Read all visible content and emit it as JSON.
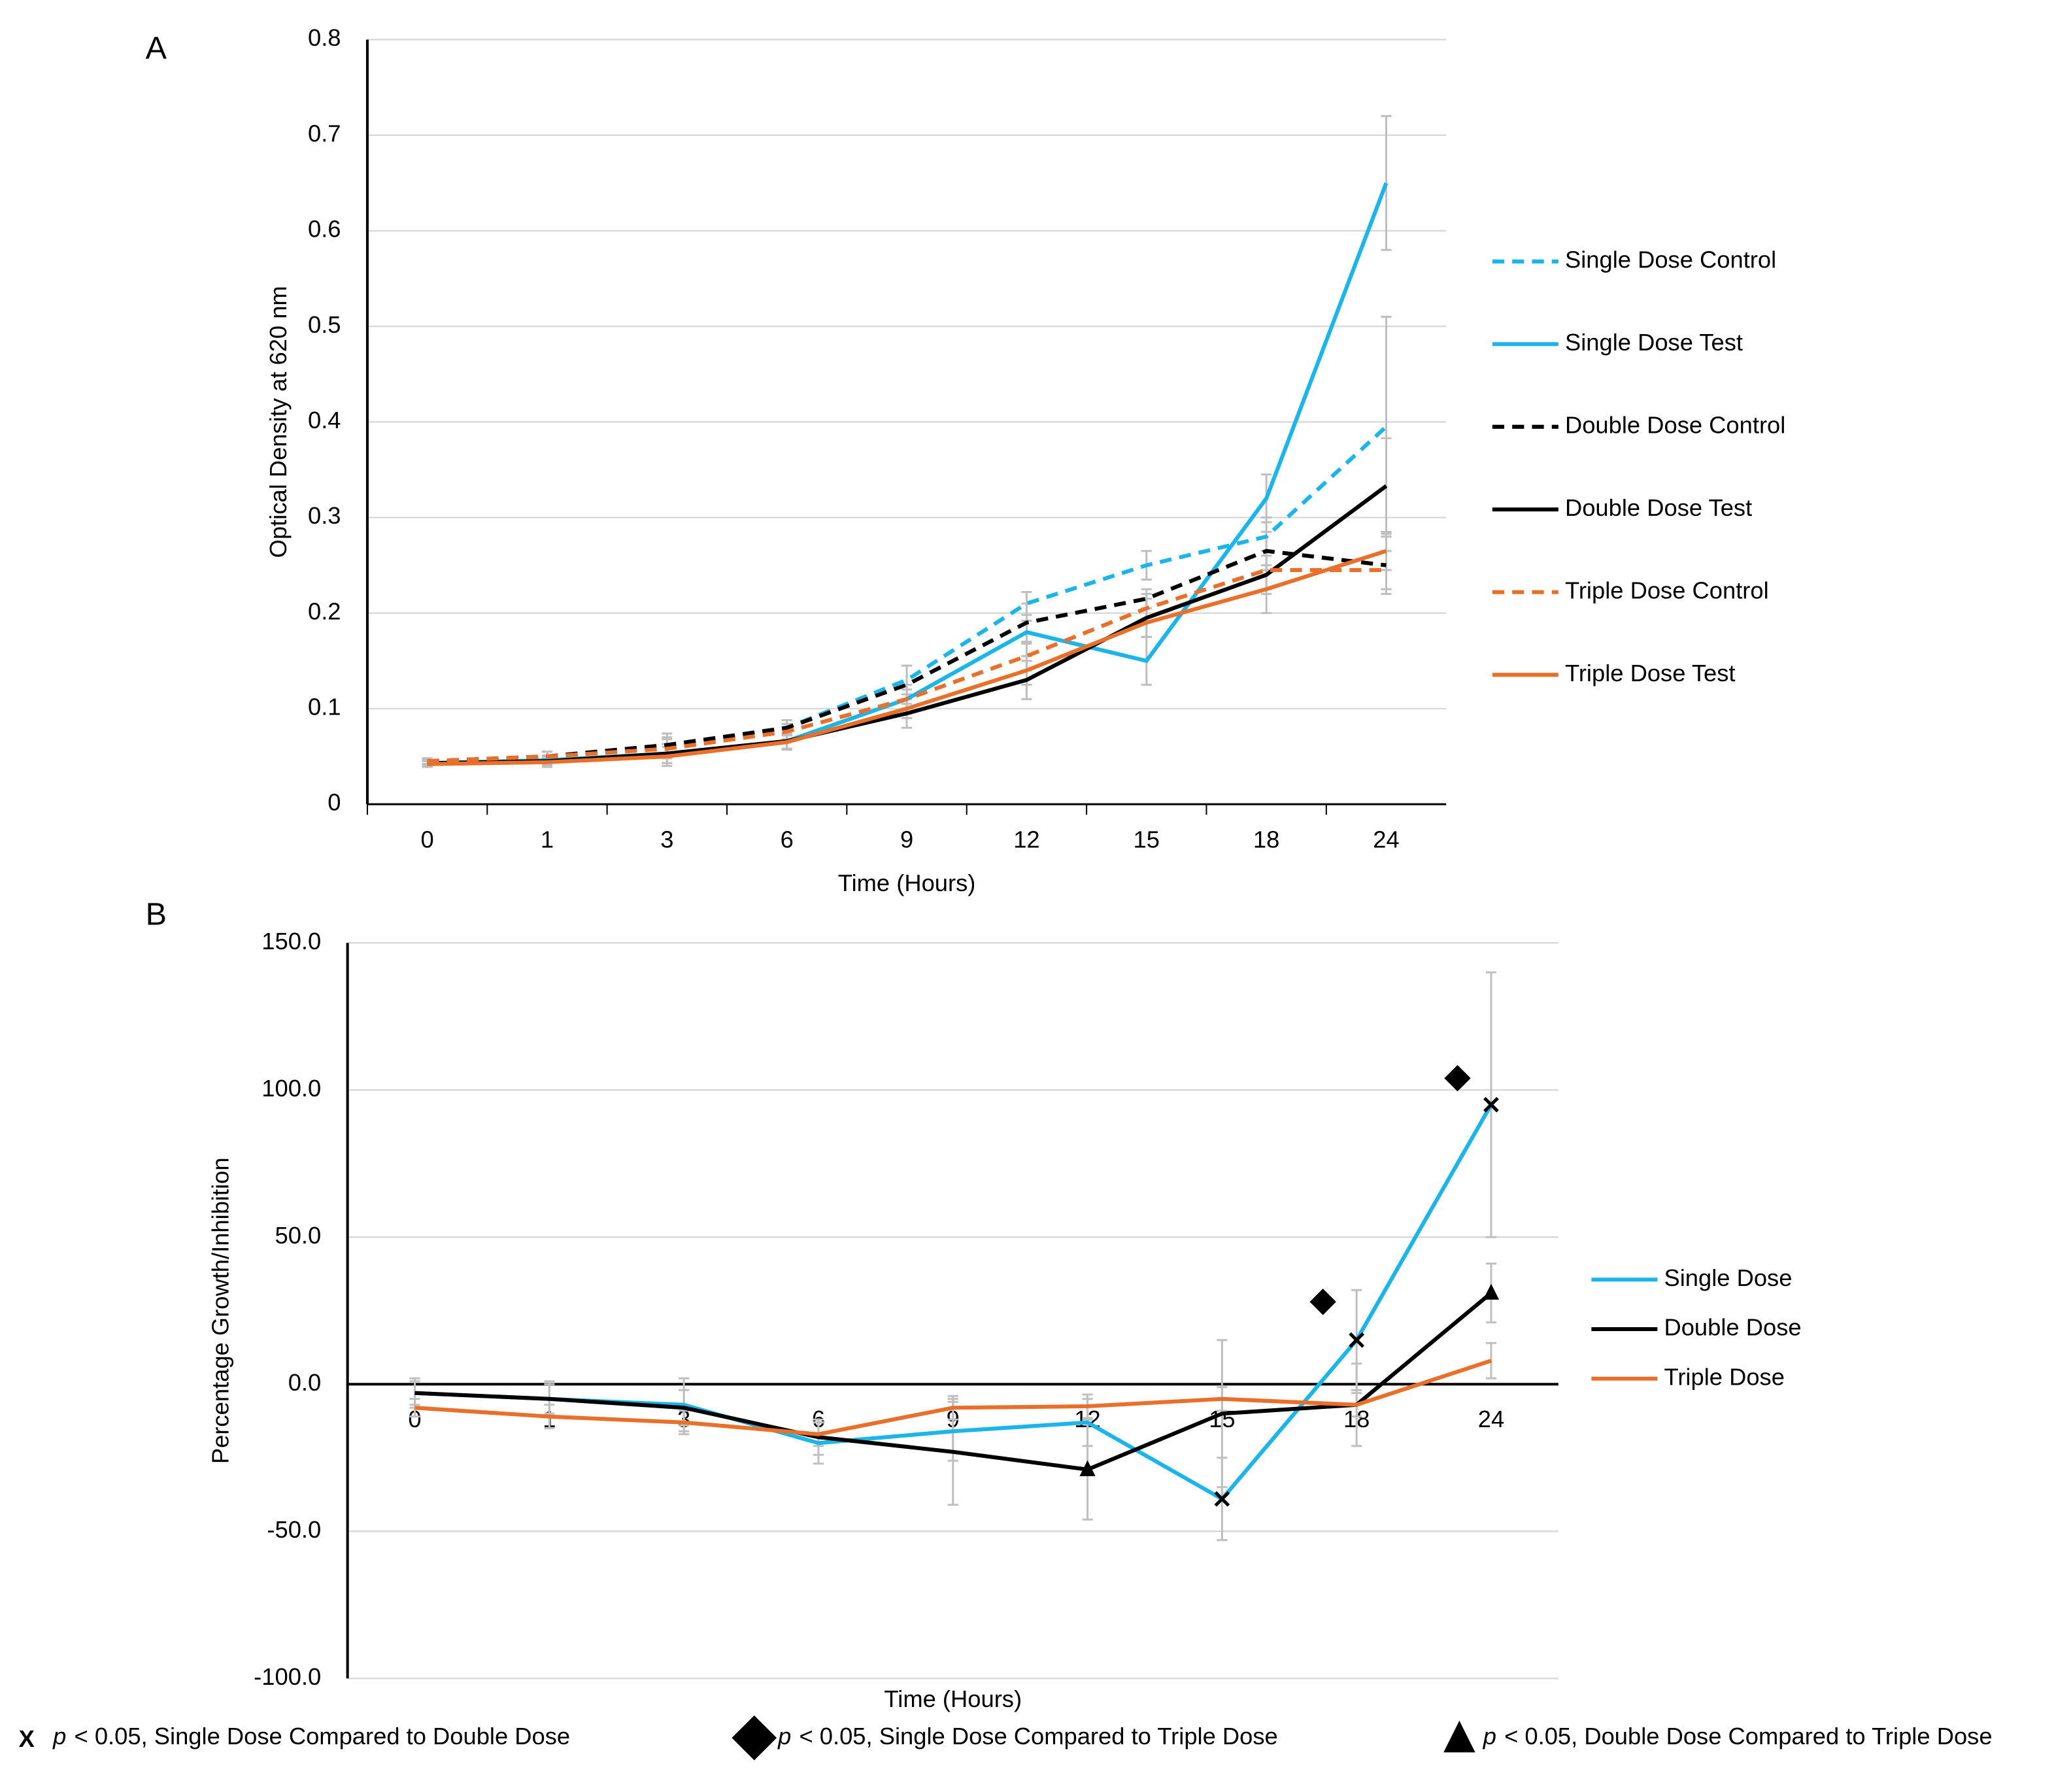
{
  "chart_data": [
    {
      "type": "line",
      "panel": "A",
      "x_label": "Time (Hours)",
      "y_label": "Optical Density at 620 nm",
      "categories": [
        "0",
        "1",
        "3",
        "6",
        "9",
        "12",
        "15",
        "18",
        "24"
      ],
      "ylim": [
        0,
        0.8
      ],
      "yticks": [
        0,
        0.1,
        0.2,
        0.3,
        0.4,
        0.5,
        0.6,
        0.7,
        0.8
      ],
      "grid": true,
      "legend": "right",
      "series": [
        {
          "name": "Single Dose Control",
          "color": "#1cb5ea",
          "dashed": true,
          "values": [
            0.045,
            0.05,
            0.06,
            0.08,
            0.13,
            0.21,
            0.25,
            0.28,
            0.395
          ],
          "errors": [
            0.003,
            0.005,
            0.01,
            0.008,
            0.015,
            0.012,
            0.015,
            0.02,
            0.115
          ]
        },
        {
          "name": "Single Dose Test",
          "color": "#1cb5ea",
          "dashed": false,
          "values": [
            0.043,
            0.046,
            0.053,
            0.066,
            0.11,
            0.18,
            0.15,
            0.32,
            0.65
          ],
          "errors": [
            0.003,
            0.005,
            0.01,
            0.008,
            0.015,
            0.012,
            0.025,
            0.025,
            0.07
          ]
        },
        {
          "name": "Double Dose Control",
          "color": "#000000",
          "dashed": true,
          "values": [
            0.045,
            0.05,
            0.062,
            0.08,
            0.125,
            0.19,
            0.215,
            0.265,
            0.25
          ],
          "errors": [
            0.003,
            0.005,
            0.012,
            0.008,
            0.02,
            0.02,
            0.01,
            0.02,
            0.03
          ]
        },
        {
          "name": "Double Dose Test",
          "color": "#000000",
          "dashed": false,
          "values": [
            0.043,
            0.045,
            0.053,
            0.066,
            0.095,
            0.13,
            0.195,
            0.24,
            0.333
          ],
          "errors": [
            0.003,
            0.005,
            0.01,
            0.008,
            0.015,
            0.02,
            0.02,
            0.02,
            0.05
          ]
        },
        {
          "name": "Triple Dose Control",
          "color": "#e8702a",
          "dashed": true,
          "values": [
            0.045,
            0.05,
            0.058,
            0.076,
            0.11,
            0.155,
            0.205,
            0.245,
            0.245
          ],
          "errors": [
            0.003,
            0.005,
            0.01,
            0.008,
            0.01,
            0.015,
            0.015,
            0.02,
            0.02
          ]
        },
        {
          "name": "Triple Dose Test",
          "color": "#e8702a",
          "dashed": false,
          "values": [
            0.042,
            0.044,
            0.05,
            0.065,
            0.1,
            0.14,
            0.19,
            0.225,
            0.265
          ],
          "errors": [
            0.003,
            0.005,
            0.01,
            0.008,
            0.01,
            0.015,
            0.015,
            0.025,
            0.02
          ]
        }
      ]
    },
    {
      "type": "line",
      "panel": "B",
      "x_label": "Time (Hours)",
      "y_label": "Percentage Growth/Inhibition",
      "categories": [
        "0",
        "1",
        "3",
        "6",
        "9",
        "12",
        "15",
        "18",
        "24"
      ],
      "ylim": [
        -100,
        150
      ],
      "yticks": [
        {
          "value": -100,
          "label": "-100.0"
        },
        {
          "value": -50,
          "label": "-50.0"
        },
        {
          "value": 0,
          "label": "0.0"
        },
        {
          "value": 50,
          "label": "50.0"
        },
        {
          "value": 100,
          "label": "100.0"
        },
        {
          "value": 150,
          "label": "150.0"
        }
      ],
      "grid": true,
      "legend": "right",
      "series": [
        {
          "name": "Single Dose",
          "color": "#1cb5ea",
          "dashed": false,
          "values": [
            -3,
            -5,
            -7,
            -20,
            -16,
            -13,
            -39,
            15,
            95
          ],
          "errors": [
            5,
            6,
            9,
            7,
            10,
            8,
            14,
            17,
            45
          ],
          "marked": [
            "15",
            "18",
            "24"
          ],
          "symbol": "x"
        },
        {
          "name": "Double Dose",
          "color": "#000000",
          "dashed": false,
          "values": [
            -3,
            -5,
            -8,
            -18,
            -23,
            -29,
            -10,
            -7,
            31
          ],
          "errors": [
            4,
            5,
            6,
            6,
            18,
            17,
            25,
            14,
            10
          ],
          "marked": [
            "12",
            "24"
          ],
          "symbol": "triangle"
        },
        {
          "name": "Triple Dose",
          "color": "#e8702a",
          "dashed": false,
          "values": [
            -8,
            -11,
            -13,
            -17,
            -8,
            -7.5,
            -5,
            -7,
            8
          ],
          "errors": [
            3,
            4,
            4,
            4,
            4,
            4,
            4,
            4,
            6
          ]
        }
      ],
      "diamonds": [
        {
          "category": "18",
          "value": 28
        },
        {
          "category": "24",
          "value": 104
        }
      ],
      "footnotes": [
        {
          "symbol": "X",
          "p": "p",
          "text": "< 0.05, Single Dose Compared to Double Dose"
        },
        {
          "p": "p",
          "text": "< 0.05, Single Dose Compared to Triple Dose"
        },
        {
          "p": "p",
          "text": "< 0.05, Double Dose Compared to Triple Dose"
        }
      ]
    }
  ]
}
